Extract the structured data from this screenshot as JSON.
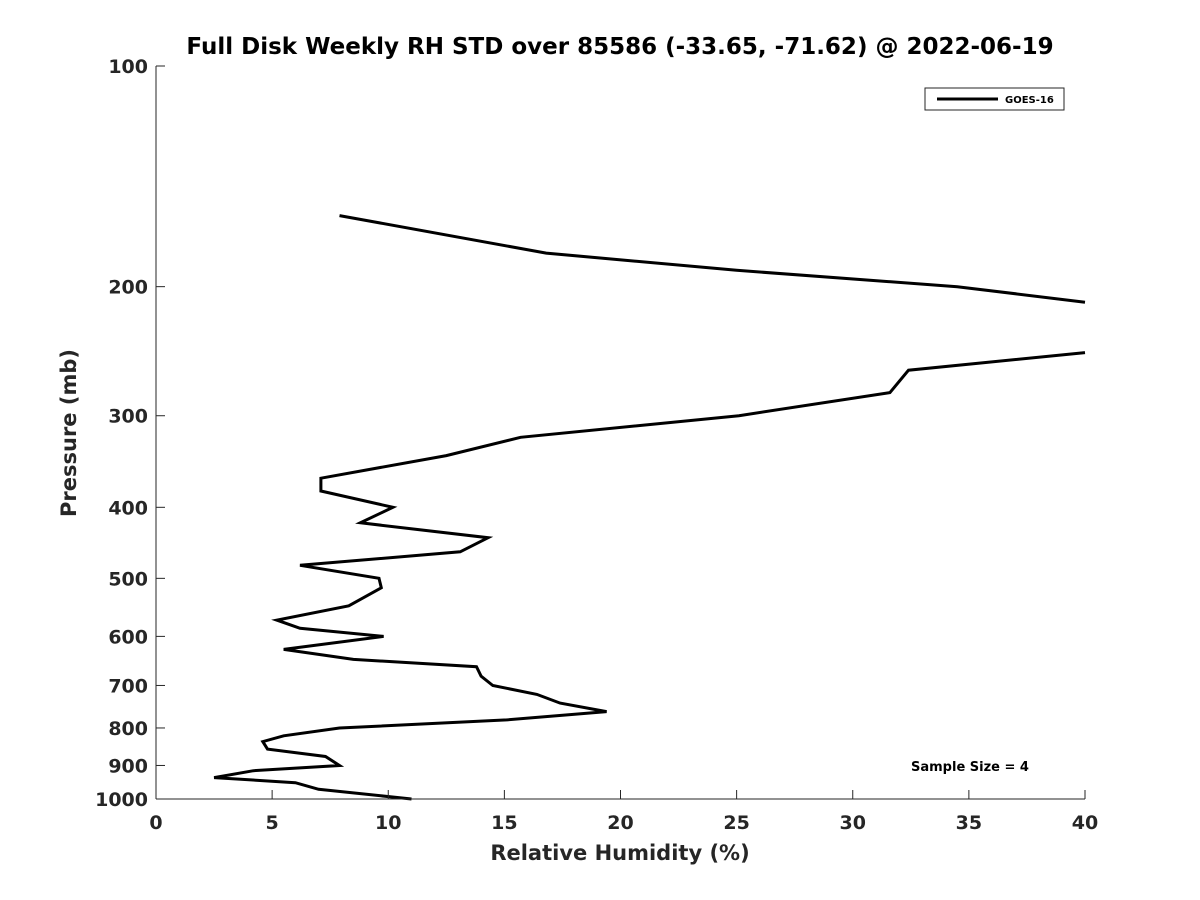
{
  "chart_data": {
    "type": "line",
    "title": "Full Disk Weekly RH STD over 85586 (-33.65, -71.62) @ 2022-06-19",
    "xlabel": "Relative Humidity (%)",
    "ylabel": "Pressure (mb)",
    "xlim": [
      0,
      40
    ],
    "ylim": [
      100,
      1000
    ],
    "y_scale": "log",
    "y_reversed": true,
    "grid": false,
    "xticks": [
      "0",
      "5",
      "10",
      "15",
      "20",
      "25",
      "30",
      "35",
      "40"
    ],
    "yticks": [
      "100",
      "200",
      "300",
      "400",
      "500",
      "600",
      "700",
      "800",
      "900",
      "1000"
    ],
    "legend": {
      "placement": "top-right",
      "entries": [
        "GOES-16"
      ]
    },
    "annotation": "Sample Size = 4",
    "series": [
      {
        "name": "GOES-16",
        "color": "#000000",
        "segments": [
          [
            [
              7.9,
              160
            ],
            [
              16.8,
              180
            ],
            [
              25,
              190
            ],
            [
              34.5,
              200
            ],
            [
              40,
              210
            ]
          ],
          [
            [
              40,
              246
            ],
            [
              32.4,
              260
            ],
            [
              31.6,
              279
            ],
            [
              25.1,
              300
            ],
            [
              15.7,
              321
            ],
            [
              12.5,
              340
            ],
            [
              7.1,
              365
            ],
            [
              7.1,
              380
            ],
            [
              10.2,
              400
            ],
            [
              8.8,
              420
            ],
            [
              14.3,
              440
            ],
            [
              13.1,
              460
            ],
            [
              6.2,
              480
            ],
            [
              9.6,
              500
            ],
            [
              9.7,
              515
            ],
            [
              8.3,
              545
            ],
            [
              5.2,
              570
            ],
            [
              6.2,
              585
            ],
            [
              9.8,
              600
            ],
            [
              5.5,
              625
            ],
            [
              8.5,
              645
            ],
            [
              13.8,
              660
            ],
            [
              14.0,
              680
            ],
            [
              14.5,
              700
            ],
            [
              16.4,
              720
            ],
            [
              17.4,
              740
            ],
            [
              19.4,
              760
            ],
            [
              15.1,
              780
            ],
            [
              7.9,
              800
            ],
            [
              5.5,
              820
            ],
            [
              4.6,
              835
            ],
            [
              4.8,
              855
            ],
            [
              7.3,
              875
            ],
            [
              7.9,
              900
            ],
            [
              4.2,
              915
            ],
            [
              2.5,
              935
            ],
            [
              6.0,
              950
            ],
            [
              7.0,
              970
            ],
            [
              11.0,
              1000
            ]
          ]
        ]
      }
    ]
  }
}
